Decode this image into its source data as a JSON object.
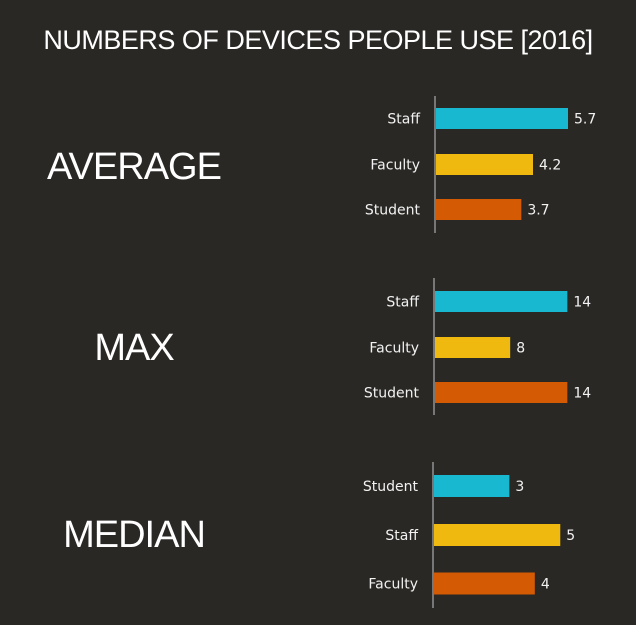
{
  "title": "NUMBERS OF DEVICES PEOPLE USE [2016]",
  "chart_data": [
    {
      "type": "bar",
      "orientation": "horizontal",
      "title": "AVERAGE",
      "categories": [
        "Staff",
        "Faculty",
        "Student"
      ],
      "values": [
        5.7,
        4.2,
        3.7
      ],
      "colors": [
        "#17b8d0",
        "#f0b90f",
        "#d45a03"
      ],
      "xlim": [
        0,
        6.0
      ],
      "grid": false,
      "data_labels": true
    },
    {
      "type": "bar",
      "orientation": "horizontal",
      "title": "MAX",
      "categories": [
        "Staff",
        "Faculty",
        "Student"
      ],
      "values": [
        14,
        8,
        14
      ],
      "colors": [
        "#17b8d0",
        "#f0b90f",
        "#d45a03"
      ],
      "xlim": [
        0,
        14.7
      ],
      "grid": false,
      "data_labels": true
    },
    {
      "type": "bar",
      "orientation": "horizontal",
      "title": "MEDIAN",
      "categories": [
        "Student",
        "Staff",
        "Faculty"
      ],
      "values": [
        3,
        5,
        4
      ],
      "colors": [
        "#17b8d0",
        "#f0b90f",
        "#d45a03"
      ],
      "xlim": [
        0,
        5.5
      ],
      "grid": false,
      "data_labels": true
    }
  ]
}
